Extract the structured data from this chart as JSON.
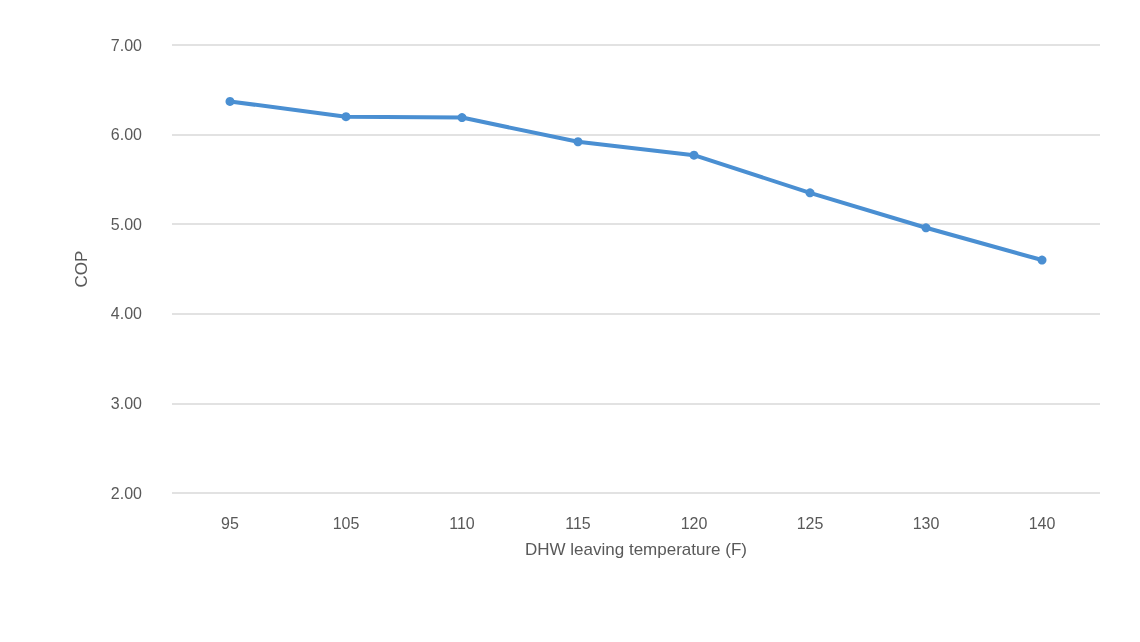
{
  "chart_data": {
    "type": "line",
    "xlabel": "DHW leaving temperature (F)",
    "ylabel": "COP",
    "categories": [
      "95",
      "105",
      "110",
      "115",
      "120",
      "125",
      "130",
      "140"
    ],
    "series": [
      {
        "color": "#4a8fd2",
        "values": [
          6.37,
          6.2,
          6.19,
          5.92,
          5.77,
          5.35,
          4.96,
          4.6
        ]
      }
    ],
    "ylim": [
      2,
      7
    ],
    "yticks": [
      {
        "value": 2,
        "label": "2.00"
      },
      {
        "value": 3,
        "label": "3.00"
      },
      {
        "value": 4,
        "label": "4.00"
      },
      {
        "value": 5,
        "label": "5.00"
      },
      {
        "value": 6,
        "label": "6.00"
      },
      {
        "value": 7,
        "label": "7.00"
      }
    ],
    "grid": "y",
    "marker": "circle",
    "line_style": "solid"
  }
}
